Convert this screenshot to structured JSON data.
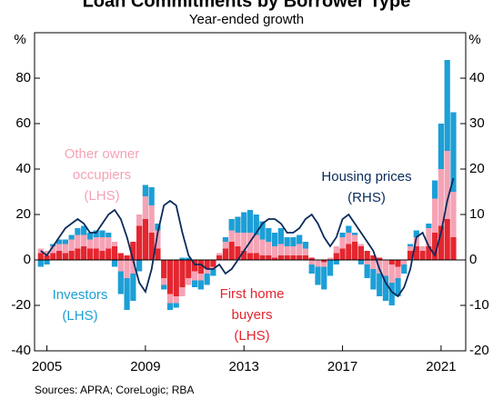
{
  "chart_data": {
    "type": "bar",
    "title": "Loan Commitments by Borrower Type",
    "subtitle": "Year-ended growth",
    "y_unit": "%",
    "y2_unit": "%",
    "source": "Sources: APRA; CoreLogic; RBA",
    "x": [
      2004.75,
      2005,
      2005.25,
      2005.5,
      2005.75,
      2006,
      2006.25,
      2006.5,
      2006.75,
      2007,
      2007.25,
      2007.5,
      2007.75,
      2008,
      2008.25,
      2008.5,
      2008.75,
      2009,
      2009.25,
      2009.5,
      2009.75,
      2010,
      2010.25,
      2010.5,
      2010.75,
      2011,
      2011.25,
      2011.5,
      2011.75,
      2012,
      2012.25,
      2012.5,
      2012.75,
      2013,
      2013.25,
      2013.5,
      2013.75,
      2014,
      2014.25,
      2014.5,
      2014.75,
      2015,
      2015.25,
      2015.5,
      2015.75,
      2016,
      2016.25,
      2016.5,
      2016.75,
      2017,
      2017.25,
      2017.5,
      2017.75,
      2018,
      2018.25,
      2018.5,
      2018.75,
      2019,
      2019.25,
      2019.5,
      2019.75,
      2020,
      2020.25,
      2020.5,
      2020.75,
      2021,
      2021.25,
      2021.5
    ],
    "xlim": [
      2004.5,
      2022
    ],
    "xticks": [
      2005,
      2009,
      2013,
      2017,
      2021
    ],
    "ylim": [
      -40,
      100
    ],
    "yticks": [
      -40,
      -20,
      0,
      20,
      40,
      60,
      80
    ],
    "y2lim": [
      -20,
      50
    ],
    "y2ticks": [
      -20,
      -10,
      0,
      10,
      20,
      30,
      40
    ],
    "series": [
      {
        "label_lines": [
          "First home",
          "buyers",
          "(LHS)"
        ],
        "color": "#e4262f",
        "values": [
          3,
          2,
          3,
          4,
          3,
          4,
          5,
          6,
          5,
          5,
          4,
          5,
          6,
          3,
          2,
          8,
          15,
          18,
          12,
          5,
          -8,
          -15,
          -16,
          -12,
          -8,
          -5,
          -6,
          -4,
          -3,
          2,
          5,
          8,
          6,
          4,
          3,
          3,
          2,
          2,
          1,
          2,
          2,
          2,
          2,
          2,
          1,
          0,
          -1,
          0,
          3,
          5,
          7,
          8,
          6,
          4,
          2,
          1,
          0,
          -2,
          -3,
          0,
          4,
          6,
          4,
          6,
          12,
          15,
          18,
          10
        ]
      },
      {
        "label_lines": [
          "Other owner",
          "occupiers",
          "(LHS)"
        ],
        "color": "#f5a3b5",
        "values": [
          2,
          2,
          3,
          3,
          4,
          5,
          6,
          5,
          4,
          5,
          6,
          5,
          2,
          -5,
          -8,
          -6,
          5,
          10,
          12,
          8,
          -3,
          -4,
          -3,
          -4,
          -3,
          -4,
          -3,
          -2,
          -1,
          1,
          3,
          5,
          6,
          8,
          9,
          8,
          7,
          6,
          5,
          5,
          4,
          4,
          5,
          3,
          -2,
          -3,
          -2,
          1,
          3,
          5,
          5,
          3,
          1,
          -2,
          -4,
          -6,
          -7,
          -8,
          -5,
          -2,
          2,
          4,
          2,
          8,
          15,
          25,
          30,
          20
        ]
      },
      {
        "label_lines": [
          "Investors",
          "(LHS)"
        ],
        "color": "#1c9fd6",
        "values": [
          -3,
          -2,
          1,
          2,
          2,
          2,
          3,
          4,
          3,
          3,
          3,
          2,
          -3,
          -10,
          -14,
          -12,
          -5,
          5,
          8,
          3,
          -2,
          -3,
          -2,
          1,
          1,
          -3,
          -4,
          -5,
          -3,
          0,
          2,
          5,
          7,
          9,
          10,
          9,
          8,
          6,
          6,
          7,
          4,
          4,
          4,
          3,
          -4,
          -8,
          -10,
          -7,
          -2,
          2,
          3,
          1,
          -2,
          -6,
          -9,
          -10,
          -11,
          -10,
          -8,
          -4,
          1,
          3,
          0,
          2,
          8,
          20,
          40,
          35
        ]
      },
      {
        "label_lines": [
          "Housing prices",
          "(RHS)"
        ],
        "color": "#0b2b5a",
        "type": "line",
        "axis": "y2",
        "values": [
          2,
          1,
          3,
          5,
          7,
          8,
          9,
          8,
          6,
          6,
          8,
          10,
          11,
          9,
          5,
          0,
          -5,
          -7,
          -2,
          6,
          12,
          13,
          12,
          6,
          1,
          -1,
          -1,
          -2,
          -2,
          -1,
          -3,
          -2,
          0,
          2,
          4,
          6,
          8,
          9,
          9,
          8,
          6,
          6,
          7,
          9,
          10,
          8,
          5,
          3,
          5,
          9,
          10,
          8,
          6,
          4,
          2,
          -2,
          -5,
          -7,
          -8,
          -6,
          -2,
          5,
          6,
          3,
          1,
          6,
          13,
          18
        ]
      }
    ]
  }
}
